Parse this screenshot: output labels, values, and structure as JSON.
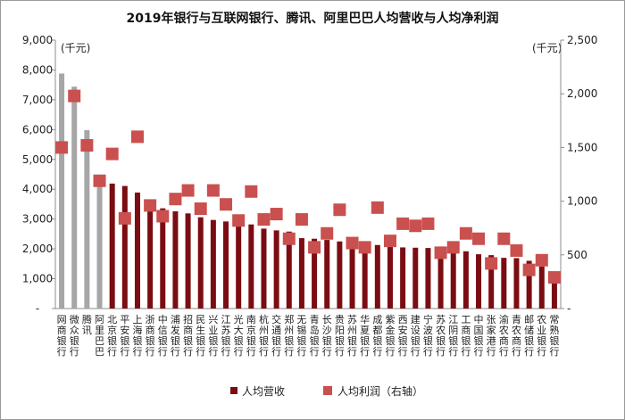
{
  "chart_data": {
    "type": "bar",
    "title": "2019年银行与互联网银行、腾讯、阿里巴巴人均营收与人均净利润",
    "unit_left": "(千元)",
    "unit_right": "(千元)",
    "ylim_left": [
      0,
      9000
    ],
    "ylim_right": [
      0,
      2500
    ],
    "yticks_left": [
      "-",
      "1,000",
      "2,000",
      "3,000",
      "4,000",
      "5,000",
      "6,000",
      "7,000",
      "8,000",
      "9,000"
    ],
    "yticks_right": [
      "-",
      "500",
      "1,000",
      "1,500",
      "2,000",
      "2,500"
    ],
    "grid": false,
    "legend_position": "bottom",
    "colors": {
      "grey_bar": "#a6a6a6",
      "bank_bar": "#7b0d12",
      "marker": "#c9504e"
    },
    "categories": [
      "网商银行",
      "微众银行",
      "腾讯",
      "阿里巴巴",
      "北京银行",
      "平安银行",
      "上海银行",
      "浙商银行",
      "中信银行",
      "浦发银行",
      "招商银行",
      "民生银行",
      "兴业银行",
      "江苏银行",
      "光大银行",
      "南京银行",
      "杭州银行",
      "交通银行",
      "郑州银行",
      "无锡银行",
      "青岛银行",
      "长沙银行",
      "贵阳银行",
      "苏州银行",
      "华夏银行",
      "成都银行",
      "紫金银行",
      "西安银行",
      "建设银行",
      "宁波银行",
      "苏农银行",
      "江阴银行",
      "工商银行",
      "中国银行",
      "张家港行",
      "渝农商行",
      "青农商行",
      "邮储银行",
      "农业银行",
      "常熟银行"
    ],
    "series": [
      {
        "name": "人均营收",
        "axis": "left",
        "values": [
          7880,
          7440,
          5980,
          4460,
          4190,
          4110,
          3890,
          3460,
          3360,
          3260,
          3190,
          3060,
          2970,
          2920,
          2880,
          2820,
          2680,
          2620,
          2580,
          2360,
          2340,
          2300,
          2250,
          2220,
          2190,
          2130,
          2080,
          2050,
          2040,
          2030,
          1980,
          1940,
          1920,
          1820,
          1790,
          1700,
          1690,
          1600,
          1410,
          1160
        ],
        "highlight_count": 4
      },
      {
        "name": "人均利润（右轴）",
        "axis": "right",
        "values": [
          1500,
          1980,
          1520,
          1190,
          1440,
          840,
          1600,
          960,
          860,
          1020,
          1100,
          930,
          1100,
          970,
          820,
          1090,
          830,
          880,
          650,
          830,
          570,
          700,
          920,
          610,
          570,
          940,
          630,
          790,
          770,
          790,
          520,
          570,
          700,
          650,
          420,
          650,
          540,
          360,
          450,
          290
        ]
      }
    ]
  }
}
